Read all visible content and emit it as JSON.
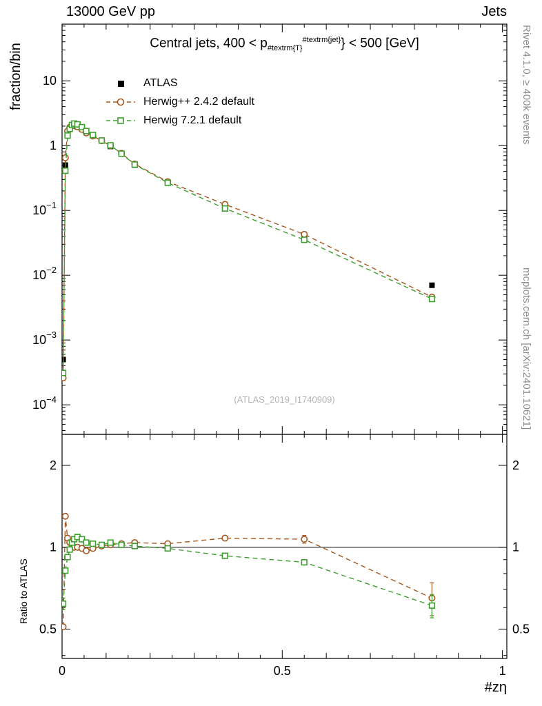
{
  "header": {
    "left": "13000 GeV pp",
    "right": "Jets"
  },
  "title": {
    "prefix": "Central jets, 400 < p",
    "sub": "#textrm{T}",
    "sup": "#textrm{jet}",
    "suffix": "} < 500 [GeV]"
  },
  "legend": [
    {
      "label": "ATLAS",
      "marker": "filled-square",
      "color": "#000000",
      "line": "none"
    },
    {
      "label": "Herwig++ 2.4.2 default",
      "marker": "open-circle",
      "color": "#a3571f",
      "line": "dashed"
    },
    {
      "label": "Herwig 7.2.1 default",
      "marker": "open-square",
      "color": "#3b9e2d",
      "line": "dashed"
    }
  ],
  "watermark": "(ATLAS_2019_I1740909)",
  "side_labels": {
    "top": "Rivet 4.1.0, ≥ 400k events",
    "bottom": "mcplots.cern.ch [arXiv:2401.10621]"
  },
  "axis_labels": {
    "main_y": "fraction/bin",
    "ratio_y": "Ratio to ATLAS",
    "x": "#zη"
  },
  "chart_data": {
    "type": "line",
    "title": "Central jets, 400 < p_{#textrm{T}}^{#textrm{jet}} < 500 [GeV]",
    "xlabel": "#zη",
    "ylabel": "fraction/bin",
    "ratio_label": "Ratio to ATLAS",
    "x": [
      0.0025,
      0.0075,
      0.0125,
      0.0175,
      0.0225,
      0.0275,
      0.035,
      0.045,
      0.055,
      0.07,
      0.09,
      0.11,
      0.135,
      0.165,
      0.24,
      0.37,
      0.55,
      0.84
    ],
    "series": [
      {
        "name": "ATLAS",
        "marker": "filled-square",
        "color": "#000000",
        "dashed": false,
        "values": [
          0.0005,
          0.5,
          1.55,
          1.85,
          2.0,
          2.05,
          1.95,
          1.8,
          1.62,
          1.42,
          1.18,
          0.97,
          0.74,
          0.5,
          0.27,
          0.115,
          0.04,
          0.007
        ]
      },
      {
        "name": "Herwig++ 2.4.2 default",
        "marker": "open-circle",
        "color": "#a3571f",
        "dashed": true,
        "values": [
          0.00026,
          0.65,
          1.67,
          1.92,
          2.04,
          2.05,
          1.95,
          1.78,
          1.57,
          1.41,
          1.19,
          0.99,
          0.76,
          0.52,
          0.278,
          0.124,
          0.0428,
          0.0046
        ],
        "ratio": [
          0.51,
          1.3,
          1.08,
          1.04,
          1.02,
          1.0,
          1.0,
          0.99,
          0.97,
          0.99,
          1.01,
          1.02,
          1.03,
          1.04,
          1.03,
          1.08,
          1.07,
          0.65
        ],
        "ratio_err": [
          0,
          0,
          0,
          0,
          0,
          0,
          0,
          0,
          0,
          0,
          0,
          0,
          0,
          0,
          0.01,
          0.015,
          0.035,
          0.09
        ]
      },
      {
        "name": "Herwig 7.2.1 default",
        "marker": "open-square",
        "color": "#3b9e2d",
        "dashed": true,
        "values": [
          0.00031,
          0.41,
          1.43,
          1.81,
          2.08,
          2.19,
          2.13,
          1.93,
          1.68,
          1.46,
          1.2,
          1.01,
          0.75,
          0.51,
          0.267,
          0.107,
          0.0352,
          0.0043
        ],
        "ratio": [
          0.62,
          0.82,
          0.92,
          0.98,
          1.04,
          1.07,
          1.09,
          1.07,
          1.04,
          1.03,
          1.02,
          1.04,
          1.02,
          1.01,
          0.99,
          0.93,
          0.88,
          0.61
        ],
        "ratio_err": [
          0.03,
          0.02,
          0.01,
          0.01,
          0,
          0,
          0,
          0,
          0,
          0,
          0,
          0.01,
          0.01,
          0.01,
          0.01,
          0.015,
          0.025,
          0.06
        ]
      }
    ],
    "xlim": [
      0,
      1.01
    ],
    "main_ylim": [
      3.5e-05,
      75
    ],
    "ratio_ylim": [
      0.39,
      2.6
    ],
    "ratio_reference": 1,
    "x_ticks": [
      {
        "v": 0,
        "t": "0"
      },
      {
        "v": 0.5,
        "t": "0.5"
      },
      {
        "v": 1,
        "t": "1"
      }
    ],
    "main_y_ticks": [
      {
        "v": 10,
        "t": "10"
      },
      {
        "v": 1,
        "t": "1"
      },
      {
        "v": 0.1,
        "t": "10",
        "e": "−1"
      },
      {
        "v": 0.01,
        "t": "10",
        "e": "−2"
      },
      {
        "v": 0.001,
        "t": "10",
        "e": "−3"
      },
      {
        "v": 0.0001,
        "t": "10",
        "e": "−4"
      }
    ],
    "ratio_y_ticks": [
      {
        "v": 0.5,
        "t": "0.5"
      },
      {
        "v": 1,
        "t": "1"
      },
      {
        "v": 2,
        "t": "2"
      }
    ],
    "ratio_minor_ticks": [
      0.4,
      0.6,
      0.7,
      0.8,
      0.9
    ]
  }
}
